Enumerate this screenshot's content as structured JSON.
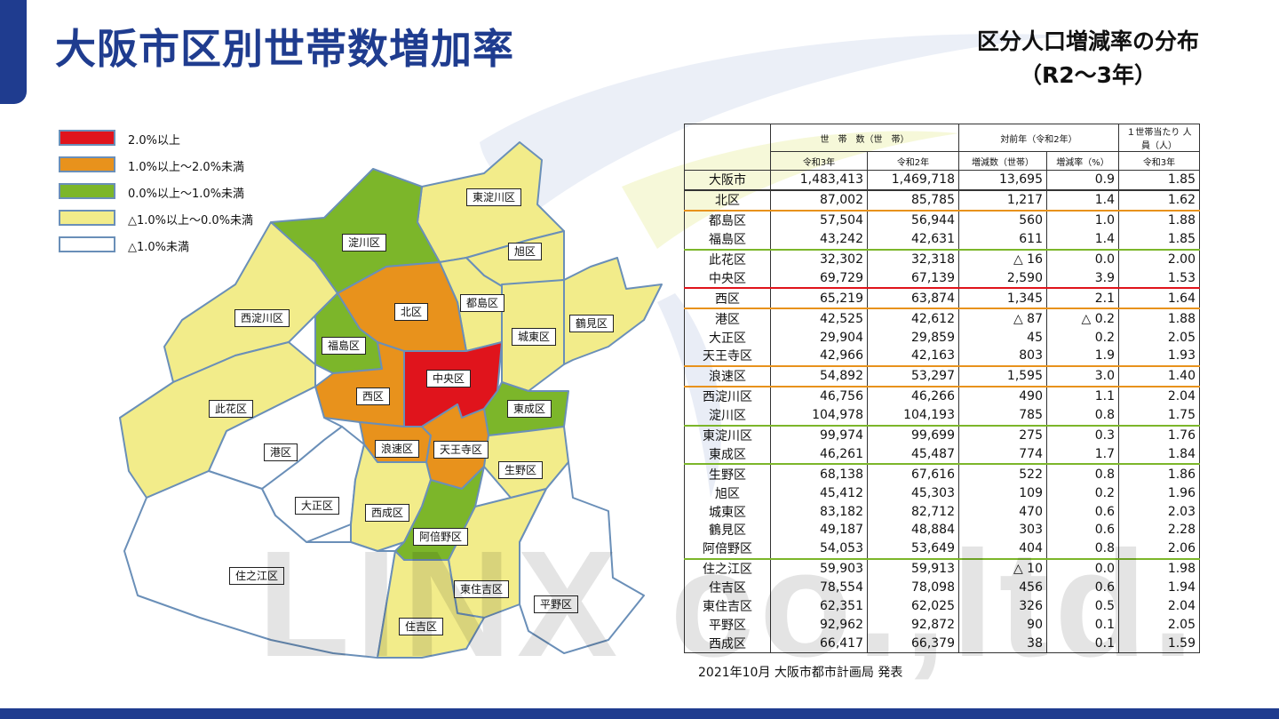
{
  "title": "大阪市区別世帯数増加率",
  "subtitle_line1": "区分人口増減率の分布",
  "subtitle_line2": "（R2～3年）",
  "watermark": "LINX co.,ltd.",
  "colors": {
    "brand": "#1f3c8f",
    "red": "#e0141c",
    "orange": "#e8921c",
    "green": "#7cb62a",
    "yellow": "#f2ec8a",
    "white": "#ffffff",
    "map_border": "#6a8fb8"
  },
  "legend": [
    {
      "label": "2.0%以上",
      "color": "#e0141c"
    },
    {
      "label": "1.0%以上～2.0%未満",
      "color": "#e8921c"
    },
    {
      "label": "0.0%以上～1.0%未満",
      "color": "#7cb62a"
    },
    {
      "label": "△1.0%以上～0.0%未満",
      "color": "#f2ec8a"
    },
    {
      "label": "△1.0%未満",
      "color": "#ffffff"
    }
  ],
  "map": {
    "wards": [
      {
        "name": "東淀川区",
        "color": "#f2ec8a"
      },
      {
        "name": "淀川区",
        "color": "#7cb62a"
      },
      {
        "name": "旭区",
        "color": "#f2ec8a"
      },
      {
        "name": "都島区",
        "color": "#f2ec8a"
      },
      {
        "name": "北区",
        "color": "#e8921c"
      },
      {
        "name": "西淀川区",
        "color": "#f2ec8a"
      },
      {
        "name": "城東区",
        "color": "#f2ec8a"
      },
      {
        "name": "鶴見区",
        "color": "#f2ec8a"
      },
      {
        "name": "福島区",
        "color": "#7cb62a"
      },
      {
        "name": "中央区",
        "color": "#e0141c"
      },
      {
        "name": "西区",
        "color": "#e8921c"
      },
      {
        "name": "此花区",
        "color": "#f2ec8a"
      },
      {
        "name": "東成区",
        "color": "#7cb62a"
      },
      {
        "name": "港区",
        "color": "#ffffff"
      },
      {
        "name": "浪速区",
        "color": "#e8921c"
      },
      {
        "name": "天王寺区",
        "color": "#e8921c"
      },
      {
        "name": "生野区",
        "color": "#f2ec8a"
      },
      {
        "name": "大正区",
        "color": "#ffffff"
      },
      {
        "name": "西成区",
        "color": "#f2ec8a"
      },
      {
        "name": "阿倍野区",
        "color": "#7cb62a"
      },
      {
        "name": "住之江区",
        "color": "#ffffff"
      },
      {
        "name": "東住吉区",
        "color": "#f2ec8a"
      },
      {
        "name": "平野区",
        "color": "#ffffff"
      },
      {
        "name": "住吉区",
        "color": "#f2ec8a"
      }
    ]
  },
  "table": {
    "header": {
      "households": "世　帯　数（世　帯）",
      "vs_prev": "対前年（令和2年）",
      "per_household": "１世帯当たり 人員（人）",
      "r3": "令和3年",
      "r2": "令和2年",
      "change": "増減数（世帯）",
      "rate": "増減率（%）",
      "per_r3": "令和3年"
    },
    "rows": [
      {
        "name": "大阪市",
        "r3": "1,483,413",
        "r2": "1,469,718",
        "change": "13,695",
        "rate": "0.9",
        "per": "1.85",
        "sep": "#333333"
      },
      {
        "name": "北区",
        "r3": "87,002",
        "r2": "85,785",
        "change": "1,217",
        "rate": "1.4",
        "per": "1.62",
        "sep": "#e8921c"
      },
      {
        "name": "都島区",
        "r3": "57,504",
        "r2": "56,944",
        "change": "560",
        "rate": "1.0",
        "per": "1.88",
        "sep": ""
      },
      {
        "name": "福島区",
        "r3": "43,242",
        "r2": "42,631",
        "change": "611",
        "rate": "1.4",
        "per": "1.85",
        "sep": "#7cb62a"
      },
      {
        "name": "此花区",
        "r3": "32,302",
        "r2": "32,318",
        "change": "△ 16",
        "rate": "0.0",
        "per": "2.00",
        "sep": ""
      },
      {
        "name": "中央区",
        "r3": "69,729",
        "r2": "67,139",
        "change": "2,590",
        "rate": "3.9",
        "per": "1.53",
        "sep": "#e0141c"
      },
      {
        "name": "西区",
        "r3": "65,219",
        "r2": "63,874",
        "change": "1,345",
        "rate": "2.1",
        "per": "1.64",
        "sep": "#e8921c"
      },
      {
        "name": "港区",
        "r3": "42,525",
        "r2": "42,612",
        "change": "△ 87",
        "rate": "△ 0.2",
        "per": "1.88",
        "sep": ""
      },
      {
        "name": "大正区",
        "r3": "29,904",
        "r2": "29,859",
        "change": "45",
        "rate": "0.2",
        "per": "2.05",
        "sep": ""
      },
      {
        "name": "天王寺区",
        "r3": "42,966",
        "r2": "42,163",
        "change": "803",
        "rate": "1.9",
        "per": "1.93",
        "sep": "#e8921c"
      },
      {
        "name": "浪速区",
        "r3": "54,892",
        "r2": "53,297",
        "change": "1,595",
        "rate": "3.0",
        "per": "1.40",
        "sep": "#e8921c"
      },
      {
        "name": "西淀川区",
        "r3": "46,756",
        "r2": "46,266",
        "change": "490",
        "rate": "1.1",
        "per": "2.04",
        "sep": ""
      },
      {
        "name": "淀川区",
        "r3": "104,978",
        "r2": "104,193",
        "change": "785",
        "rate": "0.8",
        "per": "1.75",
        "sep": "#7cb62a"
      },
      {
        "name": "東淀川区",
        "r3": "99,974",
        "r2": "99,699",
        "change": "275",
        "rate": "0.3",
        "per": "1.76",
        "sep": ""
      },
      {
        "name": "東成区",
        "r3": "46,261",
        "r2": "45,487",
        "change": "774",
        "rate": "1.7",
        "per": "1.84",
        "sep": "#7cb62a"
      },
      {
        "name": "生野区",
        "r3": "68,138",
        "r2": "67,616",
        "change": "522",
        "rate": "0.8",
        "per": "1.86",
        "sep": ""
      },
      {
        "name": "旭区",
        "r3": "45,412",
        "r2": "45,303",
        "change": "109",
        "rate": "0.2",
        "per": "1.96",
        "sep": ""
      },
      {
        "name": "城東区",
        "r3": "83,182",
        "r2": "82,712",
        "change": "470",
        "rate": "0.6",
        "per": "2.03",
        "sep": ""
      },
      {
        "name": "鶴見区",
        "r3": "49,187",
        "r2": "48,884",
        "change": "303",
        "rate": "0.6",
        "per": "2.28",
        "sep": ""
      },
      {
        "name": "阿倍野区",
        "r3": "54,053",
        "r2": "53,649",
        "change": "404",
        "rate": "0.8",
        "per": "2.06",
        "sep": "#7cb62a"
      },
      {
        "name": "住之江区",
        "r3": "59,903",
        "r2": "59,913",
        "change": "△ 10",
        "rate": "0.0",
        "per": "1.98",
        "sep": ""
      },
      {
        "name": "住吉区",
        "r3": "78,554",
        "r2": "78,098",
        "change": "456",
        "rate": "0.6",
        "per": "1.94",
        "sep": ""
      },
      {
        "name": "東住吉区",
        "r3": "62,351",
        "r2": "62,025",
        "change": "326",
        "rate": "0.5",
        "per": "2.04",
        "sep": ""
      },
      {
        "name": "平野区",
        "r3": "92,962",
        "r2": "92,872",
        "change": "90",
        "rate": "0.1",
        "per": "2.05",
        "sep": ""
      },
      {
        "name": "西成区",
        "r3": "66,417",
        "r2": "66,379",
        "change": "38",
        "rate": "0.1",
        "per": "1.59",
        "sep": ""
      }
    ]
  },
  "source_note": "2021年10月  大阪市都市計画局 発表"
}
